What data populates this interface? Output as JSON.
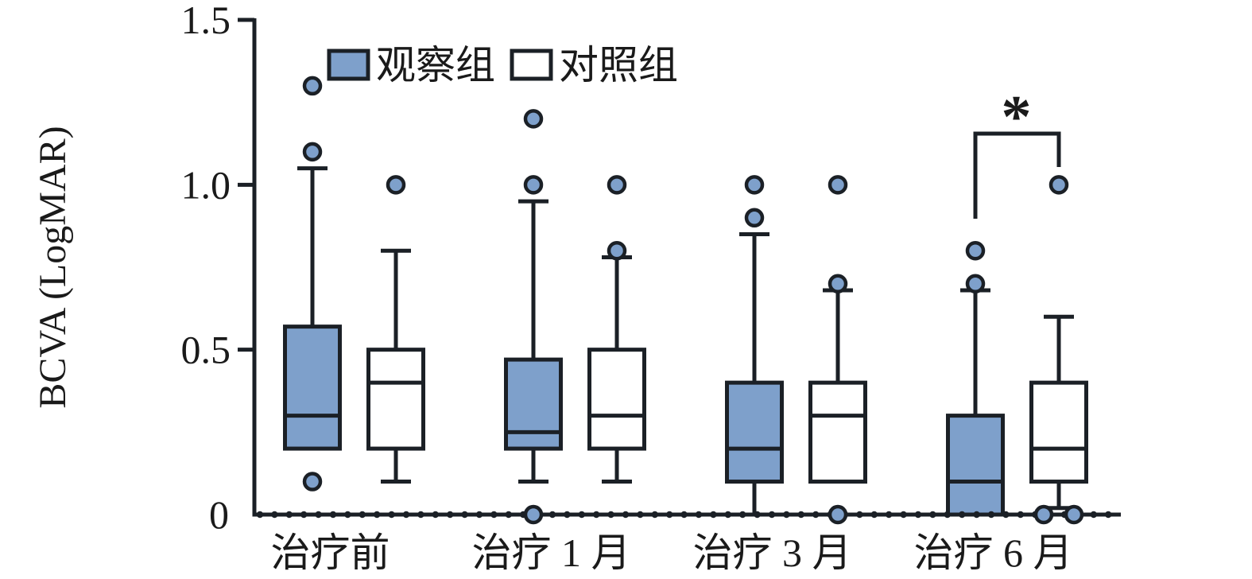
{
  "ylabel": "BCVA (LogMAR)",
  "legend": {
    "items": [
      {
        "label": "观察组",
        "fill": "#7EA0CB"
      },
      {
        "label": "对照组",
        "fill": "#FFFFFF"
      }
    ]
  },
  "colors": {
    "box_blue": "#7EA0CB",
    "stroke": "#1B2026",
    "text": "#1A1A1A",
    "background": "#FFFFFF"
  },
  "chart_data": {
    "type": "boxplot",
    "title": "",
    "xlabel": "",
    "ylabel": "BCVA (LogMAR)",
    "ylim": [
      0,
      1.5
    ],
    "yticks": [
      0,
      0.5,
      1.0,
      1.5
    ],
    "ytick_labels": [
      "0",
      "0.5",
      "1.0",
      "1.5"
    ],
    "categories": [
      "治疗前",
      "治疗 1 月",
      "治疗 3 月",
      "治疗 6 月"
    ],
    "grid": false,
    "legend_position": "top-left-inside",
    "baseline_dotted": true,
    "series": [
      {
        "name": "观察组",
        "fill": "#7EA0CB",
        "boxes": [
          {
            "q1": 0.2,
            "median": 0.3,
            "q3": 0.57,
            "whisker_low": 0.2,
            "whisker_high": 1.05,
            "outliers": [
              1.3,
              1.1,
              0.1
            ]
          },
          {
            "q1": 0.2,
            "median": 0.25,
            "q3": 0.47,
            "whisker_low": 0.1,
            "whisker_high": 0.95,
            "outliers": [
              1.2,
              1.0,
              0.0
            ]
          },
          {
            "q1": 0.1,
            "median": 0.2,
            "q3": 0.4,
            "whisker_low": 0.0,
            "whisker_high": 0.85,
            "outliers": [
              1.0,
              0.9
            ]
          },
          {
            "q1": 0.0,
            "median": 0.1,
            "q3": 0.3,
            "whisker_low": 0.0,
            "whisker_high": 0.68,
            "outliers": [
              0.8,
              0.7
            ]
          }
        ]
      },
      {
        "name": "对照组",
        "fill": "#FFFFFF",
        "boxes": [
          {
            "q1": 0.2,
            "median": 0.4,
            "q3": 0.5,
            "whisker_low": 0.1,
            "whisker_high": 0.8,
            "outliers": [
              1.0
            ]
          },
          {
            "q1": 0.2,
            "median": 0.3,
            "q3": 0.5,
            "whisker_low": 0.1,
            "whisker_high": 0.78,
            "outliers": [
              1.0,
              0.8
            ]
          },
          {
            "q1": 0.1,
            "median": 0.3,
            "q3": 0.4,
            "whisker_low": 0.1,
            "whisker_high": 0.68,
            "outliers": [
              1.0,
              0.7,
              0.0
            ]
          },
          {
            "q1": 0.1,
            "median": 0.2,
            "q3": 0.4,
            "whisker_low": 0.02,
            "whisker_high": 0.6,
            "outliers": [
              1.0,
              0.0,
              0.0
            ]
          }
        ]
      }
    ],
    "significance": {
      "category": "治疗 6 月",
      "between": [
        "观察组",
        "对照组"
      ],
      "marker": "*"
    }
  }
}
